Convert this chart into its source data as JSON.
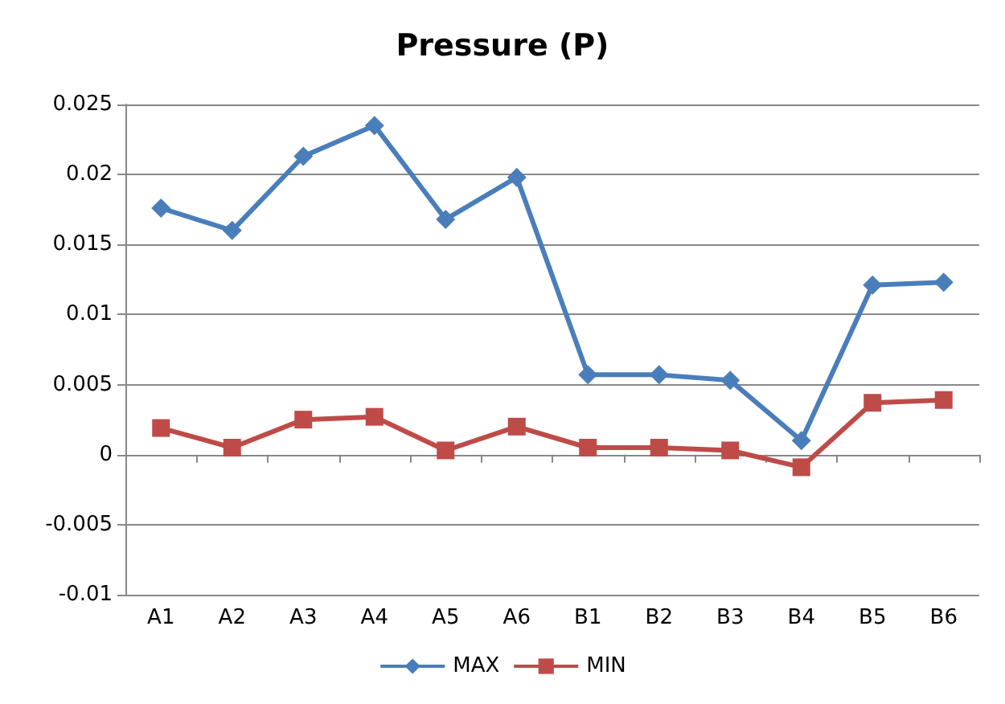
{
  "chart_data": {
    "type": "line",
    "title": "Pressure (P)",
    "categories": [
      "A1",
      "A2",
      "A3",
      "A4",
      "A5",
      "A6",
      "B1",
      "B2",
      "B3",
      "B4",
      "B5",
      "B6"
    ],
    "series": [
      {
        "name": "MAX",
        "color": "#4a7ebb",
        "marker": "diamond",
        "values": [
          0.0176,
          0.016,
          0.0213,
          0.0235,
          0.0168,
          0.0198,
          0.0057,
          0.0057,
          0.0053,
          0.001,
          0.0121,
          0.0123
        ]
      },
      {
        "name": "MIN",
        "color": "#be4b48",
        "marker": "square",
        "values": [
          0.0019,
          0.0005,
          0.0025,
          0.0027,
          0.0003,
          0.002,
          0.0005,
          0.0005,
          0.0003,
          -0.0009,
          0.0037,
          0.0039
        ]
      }
    ],
    "ylim": [
      -0.01,
      0.025
    ],
    "yticks": [
      -0.01,
      -0.005,
      0,
      0.005,
      0.01,
      0.015,
      0.02,
      0.025
    ],
    "grid": "y",
    "legend": "bottom",
    "line_style": "solid"
  }
}
